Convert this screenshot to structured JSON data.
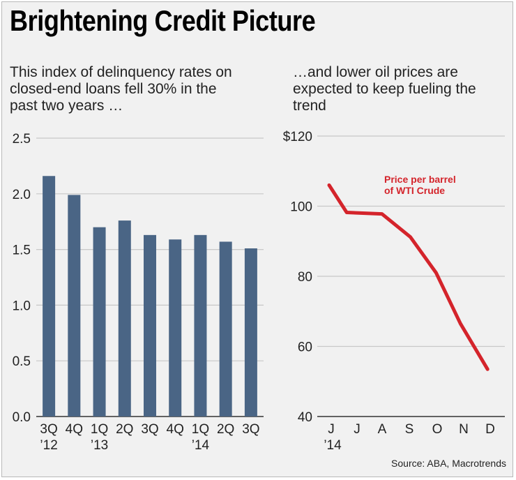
{
  "title": "Brightening Credit Picture",
  "left_subtitle": [
    "This index of delinquency rates on",
    "closed-end loans fell 30% in the",
    "past two years …"
  ],
  "right_subtitle": [
    "…and lower oil prices are",
    "expected to keep fueling the",
    "trend"
  ],
  "source": "Source: ABA, Macrotrends",
  "colors": {
    "bar": "#4a6585",
    "line": "#d4242b",
    "grid": "#c8c8c8",
    "axis": "#333333"
  },
  "chart_data": [
    {
      "type": "bar",
      "title": "This index of delinquency rates on closed-end loans fell 30% in the past two years …",
      "categories": [
        "3Q '12",
        "4Q",
        "1Q '13",
        "2Q",
        "3Q",
        "4Q",
        "1Q '14",
        "2Q",
        "3Q"
      ],
      "category_labels": [
        [
          "3Q",
          "’12"
        ],
        [
          "4Q",
          ""
        ],
        [
          "1Q",
          "’13"
        ],
        [
          "2Q",
          ""
        ],
        [
          "3Q",
          ""
        ],
        [
          "4Q",
          ""
        ],
        [
          "1Q",
          "’14"
        ],
        [
          "2Q",
          ""
        ],
        [
          "3Q",
          ""
        ]
      ],
      "values": [
        2.16,
        1.99,
        1.7,
        1.76,
        1.63,
        1.59,
        1.63,
        1.57,
        1.51
      ],
      "ylim": [
        0,
        2.5
      ],
      "yticks": [
        0,
        0.5,
        1.0,
        1.5,
        2.0,
        2.5
      ],
      "ytick_labels": [
        "0.0",
        "0.5",
        "1.0",
        "1.5",
        "2.0",
        "2.5"
      ],
      "grid": true,
      "xlabel": "",
      "ylabel": ""
    },
    {
      "type": "line",
      "title": "…and lower oil prices are expected to keep fueling the trend",
      "series": [
        {
          "name": "Price per barrel of WTI Crude",
          "label_lines": [
            "Price per barrel",
            "of WTI Crude"
          ],
          "values": [
            106,
            98.2,
            97.8,
            91.2,
            81,
            66.5,
            53.5
          ]
        }
      ],
      "categories": [
        "J '14",
        "J",
        "A",
        "S",
        "O",
        "N",
        "D"
      ],
      "category_labels": [
        [
          "J",
          "’14"
        ],
        [
          "J",
          ""
        ],
        [
          "A",
          ""
        ],
        [
          "S",
          ""
        ],
        [
          "O",
          ""
        ],
        [
          "N",
          ""
        ],
        [
          "D",
          ""
        ]
      ],
      "x_positions": [
        0,
        0.65,
        1.95,
        3.0,
        3.95,
        4.85,
        5.85
      ],
      "xlim": [
        0,
        6
      ],
      "ylim": [
        40,
        120
      ],
      "yticks": [
        40,
        60,
        80,
        100,
        120
      ],
      "ytick_labels": [
        "40",
        "60",
        "80",
        "100",
        "$120"
      ],
      "grid": true,
      "xlabel": "",
      "ylabel": ""
    }
  ]
}
